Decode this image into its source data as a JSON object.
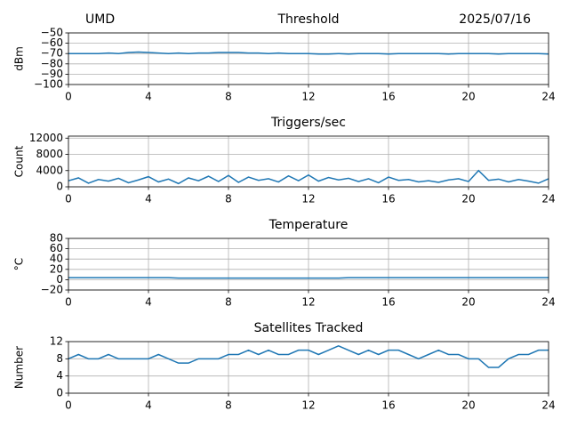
{
  "chart_data": [
    {
      "type": "line",
      "title": "Threshold",
      "left_title": "UMD",
      "right_title": "2025/07/16",
      "ylabel": "dBm",
      "color": "#1f77b4",
      "grid": true,
      "xlim": [
        0,
        24
      ],
      "xticks": [
        0,
        4,
        8,
        12,
        16,
        20,
        24
      ],
      "ylim": [
        -100,
        -50
      ],
      "yticks": [
        {
          "value": -100,
          "label": "−100"
        },
        {
          "value": -90,
          "label": "−90"
        },
        {
          "value": -80,
          "label": "−80"
        },
        {
          "value": -70,
          "label": "−70"
        },
        {
          "value": -60,
          "label": "−60"
        },
        {
          "value": -50,
          "label": "−50"
        }
      ],
      "x": [
        0,
        0.5,
        1,
        1.5,
        2,
        2.5,
        3,
        3.5,
        4,
        4.5,
        5,
        5.5,
        6,
        6.5,
        7,
        7.5,
        8,
        8.5,
        9,
        9.5,
        10,
        10.5,
        11,
        11.5,
        12,
        12.5,
        13,
        13.5,
        14,
        14.5,
        15,
        15.5,
        16,
        16.5,
        17,
        17.5,
        18,
        18.5,
        19,
        19.5,
        20,
        20.5,
        21,
        21.5,
        22,
        22.5,
        23,
        23.5,
        24
      ],
      "values": [
        -70,
        -70,
        -70,
        -70,
        -69.5,
        -70,
        -69,
        -68.5,
        -69,
        -69.5,
        -70,
        -69.5,
        -70,
        -69.5,
        -69.5,
        -69,
        -69,
        -69,
        -69.5,
        -69.5,
        -70,
        -69.5,
        -70,
        -70,
        -70,
        -70.5,
        -70.5,
        -70,
        -70.5,
        -70,
        -70,
        -70,
        -70.5,
        -70,
        -70,
        -70,
        -70,
        -70,
        -70.5,
        -70,
        -70,
        -70,
        -70,
        -70.5,
        -70,
        -70,
        -70,
        -70,
        -70.5
      ]
    },
    {
      "type": "line",
      "title": "Triggers/sec",
      "ylabel": "Count",
      "color": "#1f77b4",
      "grid": true,
      "xlim": [
        0,
        24
      ],
      "xticks": [
        0,
        4,
        8,
        12,
        16,
        20,
        24
      ],
      "ylim": [
        0,
        12500
      ],
      "yticks": [
        0,
        4000,
        8000,
        12000
      ],
      "x": [
        0,
        0.5,
        1,
        1.5,
        2,
        2.5,
        3,
        3.5,
        4,
        4.5,
        5,
        5.5,
        6,
        6.5,
        7,
        7.5,
        8,
        8.5,
        9,
        9.5,
        10,
        10.5,
        11,
        11.5,
        12,
        12.5,
        13,
        13.5,
        14,
        14.5,
        15,
        15.5,
        16,
        16.5,
        17,
        17.5,
        18,
        18.5,
        19,
        19.5,
        20,
        20.5,
        21,
        21.5,
        22,
        22.5,
        23,
        23.5,
        24
      ],
      "values": [
        1500,
        2200,
        900,
        1800,
        1400,
        2100,
        1000,
        1700,
        2500,
        1200,
        1900,
        800,
        2200,
        1500,
        2600,
        1300,
        2800,
        1100,
        2400,
        1600,
        2000,
        1200,
        2700,
        1500,
        2900,
        1400,
        2300,
        1700,
        2100,
        1300,
        2000,
        1000,
        2400,
        1600,
        1800,
        1200,
        1500,
        1100,
        1700,
        2000,
        1300,
        4000,
        1600,
        1900,
        1200,
        1800,
        1400,
        900,
        2000
      ]
    },
    {
      "type": "line",
      "title": "Temperature",
      "ylabel": "°C",
      "color": "#1f77b4",
      "grid": true,
      "xlim": [
        0,
        24
      ],
      "xticks": [
        0,
        4,
        8,
        12,
        16,
        20,
        24
      ],
      "ylim": [
        -20,
        80
      ],
      "yticks": [
        {
          "value": -20,
          "label": "−20"
        },
        0,
        20,
        40,
        60,
        80
      ],
      "x": [
        0,
        0.5,
        1,
        1.5,
        2,
        2.5,
        3,
        3.5,
        4,
        4.5,
        5,
        5.5,
        6,
        6.5,
        7,
        7.5,
        8,
        8.5,
        9,
        9.5,
        10,
        10.5,
        11,
        11.5,
        12,
        12.5,
        13,
        13.5,
        14,
        14.5,
        15,
        15.5,
        16,
        16.5,
        17,
        17.5,
        18,
        18.5,
        19,
        19.5,
        20,
        20.5,
        21,
        21.5,
        22,
        22.5,
        23,
        23.5,
        24
      ],
      "values": [
        4,
        4,
        4,
        4,
        4,
        4,
        4,
        4,
        4,
        4,
        4,
        3,
        3,
        3,
        3,
        3,
        3,
        3,
        3,
        3,
        3,
        3,
        3,
        3,
        3,
        3,
        3,
        3,
        4,
        4,
        4,
        4,
        4,
        4,
        4,
        4,
        4,
        4,
        4,
        4,
        4,
        4,
        4,
        4,
        4,
        4,
        4,
        4,
        4
      ]
    },
    {
      "type": "line",
      "title": "Satellites Tracked",
      "ylabel": "Number",
      "color": "#1f77b4",
      "grid": true,
      "xlim": [
        0,
        24
      ],
      "xticks": [
        0,
        4,
        8,
        12,
        16,
        20,
        24
      ],
      "ylim": [
        0,
        12
      ],
      "yticks": [
        0,
        4,
        8,
        12
      ],
      "x": [
        0,
        0.5,
        1,
        1.5,
        2,
        2.5,
        3,
        3.5,
        4,
        4.5,
        5,
        5.5,
        6,
        6.5,
        7,
        7.5,
        8,
        8.5,
        9,
        9.5,
        10,
        10.5,
        11,
        11.5,
        12,
        12.5,
        13,
        13.5,
        14,
        14.5,
        15,
        15.5,
        16,
        16.5,
        17,
        17.5,
        18,
        18.5,
        19,
        19.5,
        20,
        20.5,
        21,
        21.5,
        22,
        22.5,
        23,
        23.5,
        24
      ],
      "values": [
        8,
        9,
        8,
        8,
        9,
        8,
        8,
        8,
        8,
        9,
        8,
        7,
        7,
        8,
        8,
        8,
        9,
        9,
        10,
        9,
        10,
        9,
        9,
        10,
        10,
        9,
        10,
        11,
        10,
        9,
        10,
        9,
        10,
        10,
        9,
        8,
        9,
        10,
        9,
        9,
        8,
        8,
        6,
        6,
        8,
        9,
        9,
        10,
        10
      ]
    }
  ]
}
